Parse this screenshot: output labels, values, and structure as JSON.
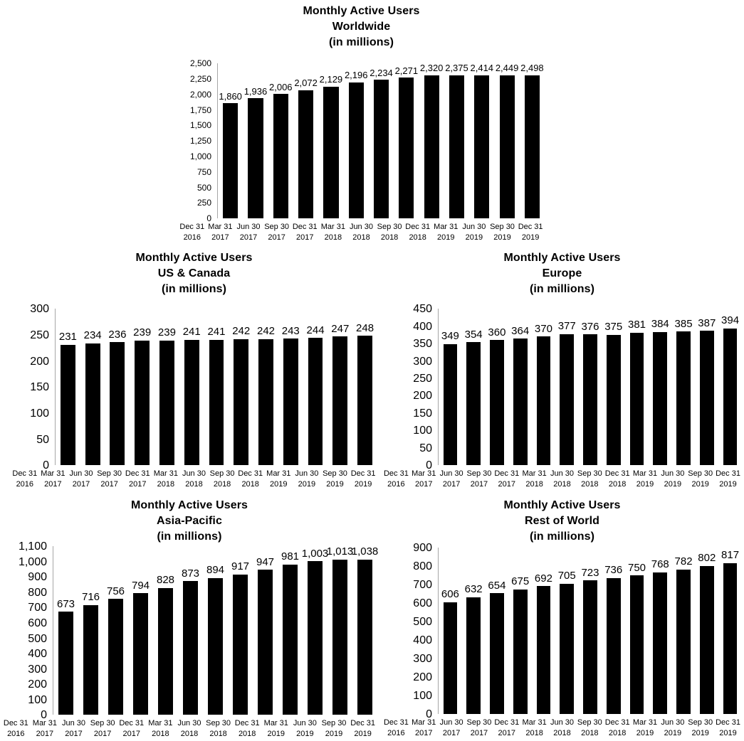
{
  "colors": {
    "bar": "#000000",
    "axis_line": "#a6a6a6",
    "text": "#000000",
    "background": "#ffffff"
  },
  "chart_data": [
    {
      "id": "worldwide",
      "type": "bar",
      "title_lines": [
        "Monthly Active Users",
        "Worldwide",
        "(in millions)"
      ],
      "categories": [
        [
          "Dec 31",
          "2016"
        ],
        [
          "Mar 31",
          "2017"
        ],
        [
          "Jun 30",
          "2017"
        ],
        [
          "Sep 30",
          "2017"
        ],
        [
          "Dec 31",
          "2017"
        ],
        [
          "Mar 31",
          "2018"
        ],
        [
          "Jun 30",
          "2018"
        ],
        [
          "Sep 30",
          "2018"
        ],
        [
          "Dec 31",
          "2018"
        ],
        [
          "Mar 31",
          "2019"
        ],
        [
          "Jun 30",
          "2019"
        ],
        [
          "Sep 30",
          "2019"
        ],
        [
          "Dec 31",
          "2019"
        ]
      ],
      "values": [
        1860,
        1936,
        2006,
        2072,
        2129,
        2196,
        2234,
        2271,
        2320,
        2375,
        2414,
        2449,
        2498
      ],
      "labels": [
        "1,860",
        "1,936",
        "2,006",
        "2,072",
        "2,129",
        "2,196",
        "2,234",
        "2,271",
        "2,320",
        "2,375",
        "2,414",
        "2,449",
        "2,498"
      ],
      "ylim": [
        0,
        2500
      ],
      "ystep": 250,
      "y_tick_labels": [
        "2,500",
        "2,250",
        "2,000",
        "1,750",
        "1,500",
        "1,250",
        "1,000",
        "750",
        "500",
        "250",
        "0"
      ],
      "grid": false,
      "legend": null
    },
    {
      "id": "us-canada",
      "type": "bar",
      "title_lines": [
        "Monthly Active Users",
        "US & Canada",
        "(in millions)"
      ],
      "categories": [
        [
          "Dec 31",
          "2016"
        ],
        [
          "Mar 31",
          "2017"
        ],
        [
          "Jun 30",
          "2017"
        ],
        [
          "Sep 30",
          "2017"
        ],
        [
          "Dec 31",
          "2017"
        ],
        [
          "Mar 31",
          "2018"
        ],
        [
          "Jun 30",
          "2018"
        ],
        [
          "Sep 30",
          "2018"
        ],
        [
          "Dec 31",
          "2018"
        ],
        [
          "Mar 31",
          "2019"
        ],
        [
          "Jun 30",
          "2019"
        ],
        [
          "Sep 30",
          "2019"
        ],
        [
          "Dec 31",
          "2019"
        ]
      ],
      "values": [
        231,
        234,
        236,
        239,
        239,
        241,
        241,
        242,
        242,
        243,
        244,
        247,
        248
      ],
      "labels": [
        "231",
        "234",
        "236",
        "239",
        "239",
        "241",
        "241",
        "242",
        "242",
        "243",
        "244",
        "247",
        "248"
      ],
      "ylim": [
        0,
        300
      ],
      "ystep": 50,
      "y_tick_labels": [
        "300",
        "250",
        "200",
        "150",
        "100",
        "50",
        "0"
      ],
      "grid": false,
      "legend": null
    },
    {
      "id": "europe",
      "type": "bar",
      "title_lines": [
        "Monthly Active Users",
        "Europe",
        "(in millions)"
      ],
      "categories": [
        [
          "Dec 31",
          "2016"
        ],
        [
          "Mar 31",
          "2017"
        ],
        [
          "Jun 30",
          "2017"
        ],
        [
          "Sep 30",
          "2017"
        ],
        [
          "Dec 31",
          "2017"
        ],
        [
          "Mar 31",
          "2018"
        ],
        [
          "Jun 30",
          "2018"
        ],
        [
          "Sep 30",
          "2018"
        ],
        [
          "Dec 31",
          "2018"
        ],
        [
          "Mar 31",
          "2019"
        ],
        [
          "Jun 30",
          "2019"
        ],
        [
          "Sep 30",
          "2019"
        ],
        [
          "Dec 31",
          "2019"
        ]
      ],
      "values": [
        349,
        354,
        360,
        364,
        370,
        377,
        376,
        375,
        381,
        384,
        385,
        387,
        394
      ],
      "labels": [
        "349",
        "354",
        "360",
        "364",
        "370",
        "377",
        "376",
        "375",
        "381",
        "384",
        "385",
        "387",
        "394"
      ],
      "ylim": [
        0,
        450
      ],
      "ystep": 50,
      "y_tick_labels": [
        "450",
        "400",
        "350",
        "300",
        "250",
        "200",
        "150",
        "100",
        "50",
        "0"
      ],
      "grid": false,
      "legend": null
    },
    {
      "id": "asia-pacific",
      "type": "bar",
      "title_lines": [
        "Monthly Active Users",
        "Asia-Pacific",
        "(in millions)"
      ],
      "categories": [
        [
          "Dec 31",
          "2016"
        ],
        [
          "Mar 31",
          "2017"
        ],
        [
          "Jun 30",
          "2017"
        ],
        [
          "Sep 30",
          "2017"
        ],
        [
          "Dec 31",
          "2017"
        ],
        [
          "Mar 31",
          "2018"
        ],
        [
          "Jun 30",
          "2018"
        ],
        [
          "Sep 30",
          "2018"
        ],
        [
          "Dec 31",
          "2018"
        ],
        [
          "Mar 31",
          "2019"
        ],
        [
          "Jun 30",
          "2019"
        ],
        [
          "Sep 30",
          "2019"
        ],
        [
          "Dec 31",
          "2019"
        ]
      ],
      "values": [
        673,
        716,
        756,
        794,
        828,
        873,
        894,
        917,
        947,
        981,
        1003,
        1013,
        1038
      ],
      "labels": [
        "673",
        "716",
        "756",
        "794",
        "828",
        "873",
        "894",
        "917",
        "947",
        "981",
        "1,003",
        "1,013",
        "1,038"
      ],
      "ylim": [
        0,
        1100
      ],
      "ystep": 100,
      "y_tick_labels": [
        "1,100",
        "1,000",
        "900",
        "800",
        "700",
        "600",
        "500",
        "400",
        "300",
        "200",
        "100",
        "0"
      ],
      "grid": false,
      "legend": null
    },
    {
      "id": "rest-of-world",
      "type": "bar",
      "title_lines": [
        "Monthly Active Users",
        "Rest of World",
        "(in millions)"
      ],
      "categories": [
        [
          "Dec 31",
          "2016"
        ],
        [
          "Mar 31",
          "2017"
        ],
        [
          "Jun 30",
          "2017"
        ],
        [
          "Sep 30",
          "2017"
        ],
        [
          "Dec 31",
          "2017"
        ],
        [
          "Mar 31",
          "2018"
        ],
        [
          "Jun 30",
          "2018"
        ],
        [
          "Sep 30",
          "2018"
        ],
        [
          "Dec 31",
          "2018"
        ],
        [
          "Mar 31",
          "2019"
        ],
        [
          "Jun 30",
          "2019"
        ],
        [
          "Sep 30",
          "2019"
        ],
        [
          "Dec 31",
          "2019"
        ]
      ],
      "values": [
        606,
        632,
        654,
        675,
        692,
        705,
        723,
        736,
        750,
        768,
        782,
        802,
        817
      ],
      "labels": [
        "606",
        "632",
        "654",
        "675",
        "692",
        "705",
        "723",
        "736",
        "750",
        "768",
        "782",
        "802",
        "817"
      ],
      "ylim": [
        0,
        900
      ],
      "ystep": 100,
      "y_tick_labels": [
        "900",
        "800",
        "700",
        "600",
        "500",
        "400",
        "300",
        "200",
        "100",
        "0"
      ],
      "grid": false,
      "legend": null
    }
  ]
}
